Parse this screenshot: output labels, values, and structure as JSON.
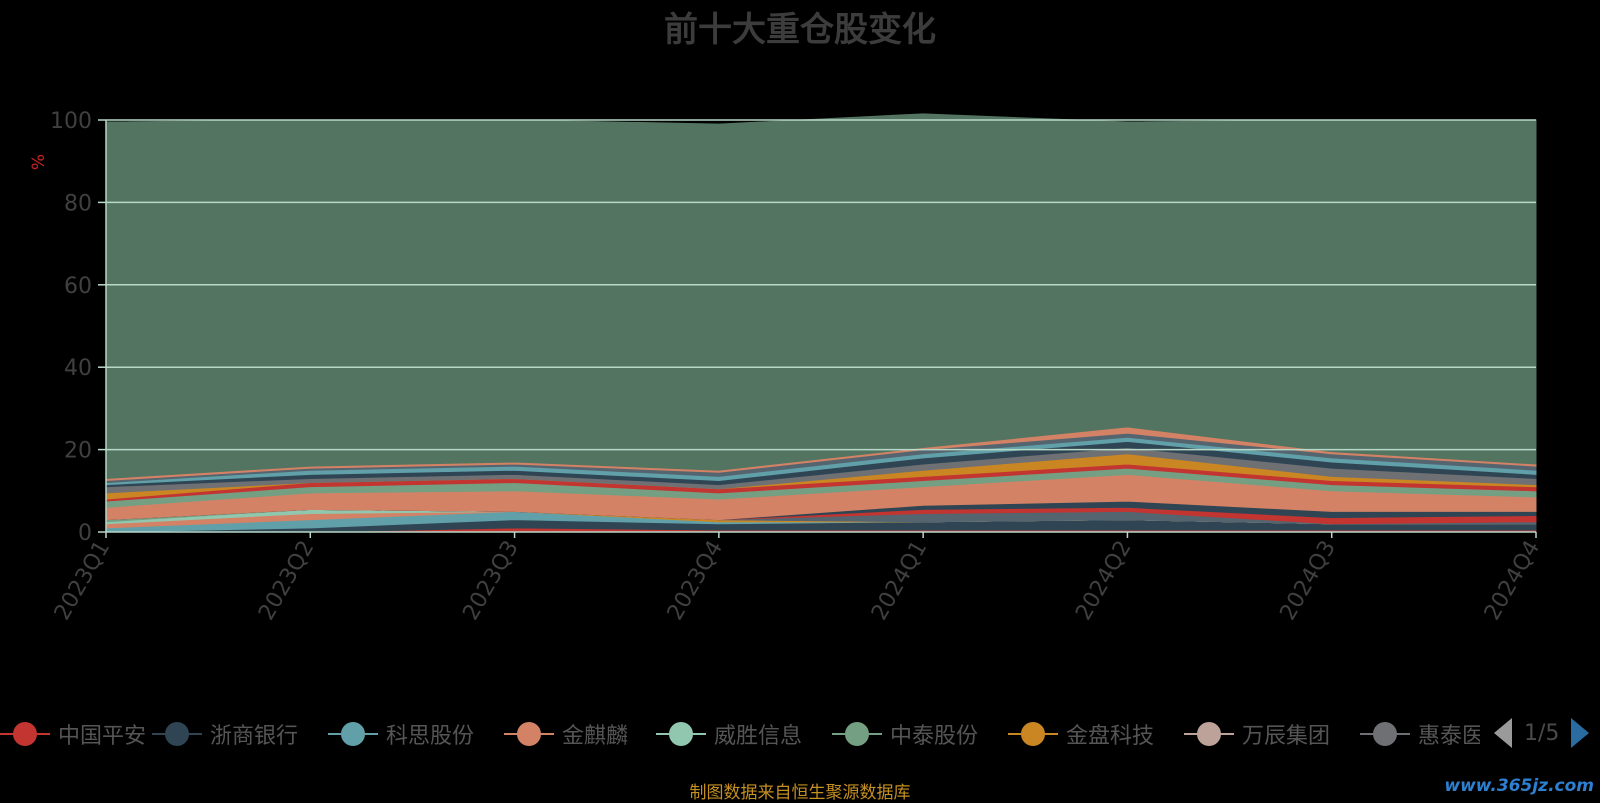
{
  "title": "前十大重仓股变化",
  "source_note": "制图数据来自恒生聚源数据库",
  "watermark": "www.365jz.com",
  "pager": {
    "text": "1/5"
  },
  "colors": {
    "background": "#000000",
    "grid": "#b8d8c8",
    "axis_text": "#404040",
    "unit_text": "#cc2222",
    "remainder_fill": "#527461"
  },
  "legend": {
    "items": [
      {
        "label": "中国平安",
        "color": "#c23531"
      },
      {
        "label": "浙商银行",
        "color": "#2f4554"
      },
      {
        "label": "科思股份",
        "color": "#61a0a8"
      },
      {
        "label": "金麒麟",
        "color": "#d48265"
      },
      {
        "label": "威胜信息",
        "color": "#91c7ae"
      },
      {
        "label": "中泰股份",
        "color": "#749f83"
      },
      {
        "label": "金盘科技",
        "color": "#ca8622"
      },
      {
        "label": "万辰集团",
        "color": "#bda29a"
      },
      {
        "label": "惠泰医疗",
        "color": "#6e7074"
      }
    ]
  },
  "chart_data": {
    "type": "area",
    "stacked": true,
    "title": "前十大重仓股变化",
    "ylabel": "%",
    "ylim": [
      0,
      100
    ],
    "yticks": [
      0,
      20,
      40,
      60,
      80,
      100
    ],
    "grid": true,
    "legend_position": "bottom",
    "categories": [
      "2023Q1",
      "2023Q2",
      "2023Q3",
      "2023Q4",
      "2024Q1",
      "2024Q2",
      "2024Q3",
      "2024Q4"
    ],
    "series": [
      {
        "name": "中国平安",
        "color": "#c23531",
        "values": [
          0,
          0,
          1,
          0.5,
          0.5,
          0.5,
          0.5,
          0.5
        ]
      },
      {
        "name": "浙商银行",
        "color": "#2f4554",
        "values": [
          0,
          1,
          2,
          1.5,
          2,
          2.5,
          1.5,
          1.5
        ]
      },
      {
        "name": "科思股份",
        "color": "#61a0a8",
        "values": [
          1,
          2,
          2,
          0.5,
          0,
          0,
          0,
          0
        ]
      },
      {
        "name": "金麒麟",
        "color": "#d48265",
        "values": [
          1,
          1.5,
          0,
          0,
          0,
          0,
          0,
          0
        ]
      },
      {
        "name": "威胜信息",
        "color": "#91c7ae",
        "values": [
          0.5,
          1,
          0,
          0,
          0,
          0,
          0,
          0
        ]
      },
      {
        "name": "中泰股份",
        "color": "#749f83",
        "values": [
          0.5,
          0,
          0,
          0,
          0,
          0,
          0,
          0
        ]
      },
      {
        "name": "金盘科技",
        "color": "#ca8622",
        "values": [
          0,
          0,
          0,
          0.5,
          0,
          0,
          0,
          0
        ]
      },
      {
        "name": "万辰集团",
        "color": "#bda29a",
        "values": [
          0,
          0,
          0,
          0,
          0,
          0,
          0,
          0
        ]
      },
      {
        "name": "惠泰医疗",
        "color": "#6e7074",
        "values": [
          0,
          0,
          0,
          0,
          0,
          0,
          0,
          0
        ]
      },
      {
        "name": "",
        "color": "#546570",
        "values": [
          0,
          0,
          0,
          0,
          2,
          2,
          0,
          0.5
        ]
      },
      {
        "name": "",
        "color": "#c23531",
        "values": [
          0,
          0,
          0,
          0,
          1,
          1,
          1.5,
          1.5
        ]
      },
      {
        "name": "",
        "color": "#2f4554",
        "values": [
          0,
          0,
          0,
          0,
          1,
          1.5,
          1.5,
          1
        ]
      },
      {
        "name": "",
        "color": "#d48265",
        "values": [
          3,
          4,
          5,
          5,
          4.5,
          6.5,
          5,
          3.5
        ]
      },
      {
        "name": "",
        "color": "#749f83",
        "values": [
          1.5,
          1.5,
          2,
          1.5,
          1.5,
          1.5,
          1.5,
          1.5
        ]
      },
      {
        "name": "",
        "color": "#c23531",
        "values": [
          0.5,
          1,
          1,
          1,
          1,
          1,
          1,
          1
        ]
      },
      {
        "name": "",
        "color": "#ca8622",
        "values": [
          1.5,
          0,
          0,
          0,
          1.5,
          2.5,
          1,
          0.5
        ]
      },
      {
        "name": "",
        "color": "#6e7074",
        "values": [
          1.5,
          1,
          1,
          1,
          1.5,
          1.5,
          2,
          1.5
        ]
      },
      {
        "name": "",
        "color": "#2f4554",
        "values": [
          0.5,
          1,
          1,
          1,
          1.5,
          1.5,
          1.5,
          1
        ]
      },
      {
        "name": "",
        "color": "#61a0a8",
        "values": [
          0.5,
          1,
          1,
          1,
          1,
          1,
          1,
          1
        ]
      },
      {
        "name": "",
        "color": "#546570",
        "values": [
          0.5,
          0.5,
          0.5,
          1,
          1,
          1,
          1,
          1
        ]
      },
      {
        "name": "",
        "color": "#d48265",
        "values": [
          0.5,
          0.5,
          0.5,
          0.5,
          0.5,
          1.5,
          0.5,
          0.5
        ]
      },
      {
        "name": "",
        "color": "#527461",
        "values": [
          86.5,
          84,
          83,
          84,
          81,
          74,
          80.5,
          83.5
        ]
      }
    ]
  }
}
